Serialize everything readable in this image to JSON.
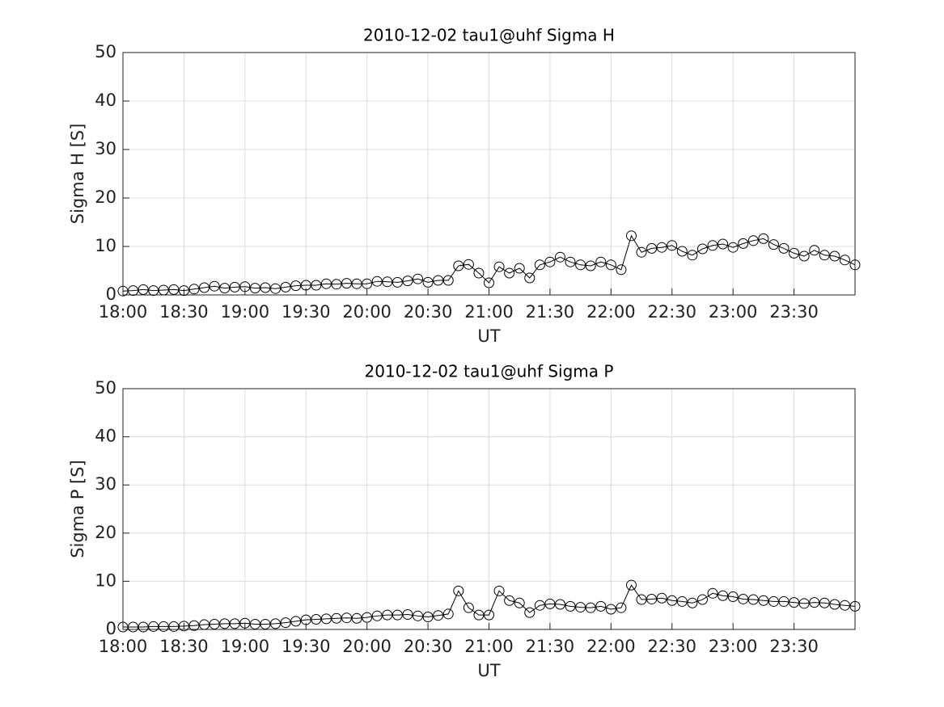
{
  "chart_data": [
    {
      "type": "line",
      "title": "2010-12-02  tau1@uhf Sigma H",
      "xlabel": "UT",
      "ylabel": "Sigma H [S]",
      "color": "#000000",
      "marker": "circle",
      "grid": true,
      "x": [
        "18:00",
        "18:05",
        "18:10",
        "18:15",
        "18:20",
        "18:25",
        "18:30",
        "18:35",
        "18:40",
        "18:45",
        "18:50",
        "18:55",
        "19:00",
        "19:05",
        "19:10",
        "19:15",
        "19:20",
        "19:25",
        "19:30",
        "19:35",
        "19:40",
        "19:45",
        "19:50",
        "19:55",
        "20:00",
        "20:05",
        "20:10",
        "20:15",
        "20:20",
        "20:25",
        "20:30",
        "20:35",
        "20:40",
        "20:45",
        "20:50",
        "20:55",
        "21:00",
        "21:05",
        "21:10",
        "21:15",
        "21:20",
        "21:25",
        "21:30",
        "21:35",
        "21:40",
        "21:45",
        "21:50",
        "21:55",
        "22:00",
        "22:05",
        "22:10",
        "22:15",
        "22:20",
        "22:25",
        "22:30",
        "22:35",
        "22:40",
        "22:45",
        "22:50",
        "22:55",
        "23:00",
        "23:05",
        "23:10",
        "23:15",
        "23:20",
        "23:25",
        "23:30",
        "23:35",
        "23:40",
        "23:45",
        "23:50",
        "23:55",
        "24:00"
      ],
      "values": [
        0.8,
        0.9,
        1.1,
        0.9,
        1.0,
        1.1,
        0.9,
        1.2,
        1.5,
        1.8,
        1.4,
        1.6,
        1.7,
        1.4,
        1.5,
        1.3,
        1.6,
        1.9,
        2.0,
        2.0,
        2.3,
        2.2,
        2.4,
        2.3,
        2.3,
        2.8,
        2.7,
        2.6,
        2.9,
        3.3,
        2.6,
        3.0,
        3.0,
        6.0,
        6.3,
        4.5,
        2.5,
        5.8,
        4.5,
        5.5,
        3.5,
        6.2,
        6.8,
        7.8,
        6.8,
        6.2,
        6.0,
        6.8,
        6.2,
        5.2,
        12.2,
        8.8,
        9.6,
        9.8,
        10.2,
        9.0,
        8.2,
        9.5,
        10.2,
        10.5,
        9.8,
        10.6,
        11.2,
        11.6,
        10.4,
        9.6,
        8.6,
        8.0,
        9.2,
        8.2,
        8.0,
        7.2,
        6.2
      ],
      "xlim": [
        "18:00",
        "24:00"
      ],
      "xticks": [
        "18:00",
        "18:30",
        "19:00",
        "19:30",
        "20:00",
        "20:30",
        "21:00",
        "21:30",
        "22:00",
        "22:30",
        "23:00",
        "23:30"
      ],
      "ylim": [
        0,
        50
      ],
      "yticks": [
        0,
        10,
        20,
        30,
        40,
        50
      ]
    },
    {
      "type": "line",
      "title": "2010-12-02  tau1@uhf Sigma P",
      "xlabel": "UT",
      "ylabel": "Sigma P [S]",
      "color": "#000000",
      "marker": "circle",
      "grid": true,
      "x": [
        "18:00",
        "18:05",
        "18:10",
        "18:15",
        "18:20",
        "18:25",
        "18:30",
        "18:35",
        "18:40",
        "18:45",
        "18:50",
        "18:55",
        "19:00",
        "19:05",
        "19:10",
        "19:15",
        "19:20",
        "19:25",
        "19:30",
        "19:35",
        "19:40",
        "19:45",
        "19:50",
        "19:55",
        "20:00",
        "20:05",
        "20:10",
        "20:15",
        "20:20",
        "20:25",
        "20:30",
        "20:35",
        "20:40",
        "20:45",
        "20:50",
        "20:55",
        "21:00",
        "21:05",
        "21:10",
        "21:15",
        "21:20",
        "21:25",
        "21:30",
        "21:35",
        "21:40",
        "21:45",
        "21:50",
        "21:55",
        "22:00",
        "22:05",
        "22:10",
        "22:15",
        "22:20",
        "22:25",
        "22:30",
        "22:35",
        "22:40",
        "22:45",
        "22:50",
        "22:55",
        "23:00",
        "23:05",
        "23:10",
        "23:15",
        "23:20",
        "23:25",
        "23:30",
        "23:35",
        "23:40",
        "23:45",
        "23:50",
        "23:55",
        "24:00"
      ],
      "values": [
        0.5,
        0.5,
        0.5,
        0.6,
        0.6,
        0.6,
        0.7,
        0.8,
        1.0,
        1.1,
        1.2,
        1.2,
        1.3,
        1.1,
        1.1,
        1.2,
        1.4,
        1.7,
        2.0,
        2.1,
        2.2,
        2.3,
        2.4,
        2.3,
        2.5,
        2.8,
        3.0,
        3.0,
        3.1,
        2.8,
        2.6,
        2.9,
        3.2,
        8.0,
        4.5,
        3.0,
        3.0,
        8.0,
        6.0,
        5.5,
        3.5,
        5.0,
        5.3,
        5.2,
        4.8,
        4.6,
        4.5,
        4.8,
        4.2,
        4.5,
        9.2,
        6.2,
        6.3,
        6.5,
        6.0,
        5.8,
        5.5,
        6.2,
        7.5,
        7.0,
        6.8,
        6.3,
        6.2,
        6.0,
        5.8,
        5.8,
        5.6,
        5.4,
        5.6,
        5.5,
        5.2,
        5.0,
        4.8
      ],
      "xlim": [
        "18:00",
        "24:00"
      ],
      "xticks": [
        "18:00",
        "18:30",
        "19:00",
        "19:30",
        "20:00",
        "20:30",
        "21:00",
        "21:30",
        "22:00",
        "22:30",
        "23:00",
        "23:30"
      ],
      "ylim": [
        0,
        50
      ],
      "yticks": [
        0,
        10,
        20,
        30,
        40,
        50
      ]
    }
  ]
}
